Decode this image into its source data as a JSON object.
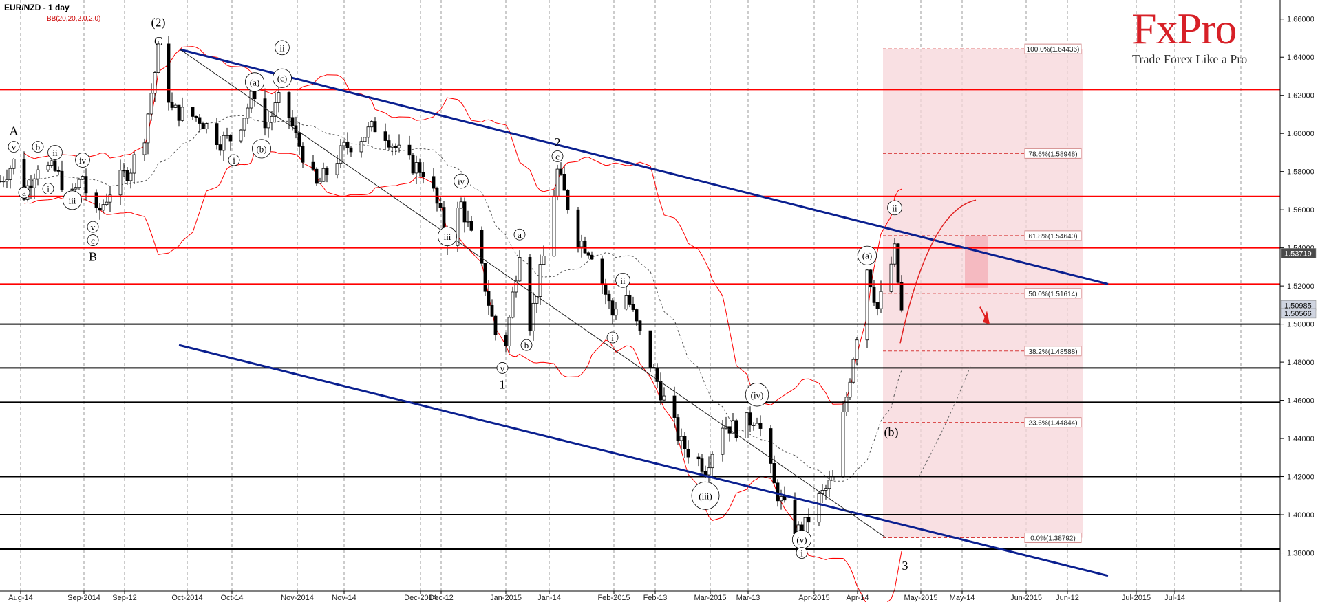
{
  "header": {
    "symbol_title": "EUR/NZD - 1 day",
    "indicator_label": "BB(20,20,2.0,2.0)"
  },
  "logo": {
    "name": "FxPro",
    "tagline": "Trade Forex Like a Pro"
  },
  "colors": {
    "bull": "#ffffff",
    "bear": "#000000",
    "bollinger": "#ff0000",
    "channel": "#0a1f8f",
    "resistance": "#ff0000",
    "support": "#000000",
    "fib_zone": "#f7d5d9",
    "fib_line": "#d73c3c"
  },
  "chart_data": {
    "type": "candlestick",
    "title": "EUR/NZD - 1 day",
    "ylim": [
      1.36,
      1.67
    ],
    "y_ticks": [
      "1.38000",
      "1.40000",
      "1.42000",
      "1.44000",
      "1.46000",
      "1.48000",
      "1.50000",
      "1.52000",
      "1.54000",
      "1.56000",
      "1.58000",
      "1.60000",
      "1.62000",
      "1.64000",
      "1.66000"
    ],
    "x_ticks": [
      "Aug-14",
      "Sep-2014",
      "Sep-12",
      "Oct-2014",
      "Oct-14",
      "Nov-2014",
      "Nov-14",
      "Dec-2014",
      "Dec-12",
      "Jan-2015",
      "Jan-14",
      "Feb-2015",
      "Feb-13",
      "Mar-2015",
      "Mar-13",
      "Apr-2015",
      "Apr-14",
      "May-2015",
      "May-14",
      "Jun-2015",
      "Jun-12",
      "Jul-2015",
      "Jul-14"
    ],
    "price_tags": [
      {
        "label": "1.53719",
        "price": 1.53719,
        "style": "dark"
      },
      {
        "label": "1.50985",
        "price": 1.50985,
        "style": "light"
      },
      {
        "label": "1.50566",
        "price": 1.50566,
        "style": "light"
      }
    ],
    "resistance_levels": [
      1.623,
      1.567,
      1.54,
      1.521
    ],
    "support_levels": [
      1.5,
      1.477,
      1.459,
      1.42,
      1.4,
      1.382
    ],
    "fibonacci": [
      {
        "label": "100.0%(1.64436)",
        "price": 1.64436
      },
      {
        "label": "78.6%(1.58948)",
        "price": 1.58948
      },
      {
        "label": "61.8%(1.54640)",
        "price": 1.5464
      },
      {
        "label": "50.0%(1.51614)",
        "price": 1.51614
      },
      {
        "label": "38.2%(1.48588)",
        "price": 1.48588
      },
      {
        "label": "23.6%(1.44844)",
        "price": 1.44844
      },
      {
        "label": "0.0%(1.38792)",
        "price": 1.38792
      }
    ],
    "wave_labels": [
      {
        "text": "(2)",
        "day": 46,
        "price": 1.658
      },
      {
        "text": "C",
        "day": 46,
        "price": 1.648
      },
      {
        "text": "A",
        "day": 4,
        "price": 1.601
      },
      {
        "text": "v",
        "day": 4,
        "price": 1.593,
        "circled": true
      },
      {
        "text": "a",
        "day": 7,
        "price": 1.569,
        "circled": true
      },
      {
        "text": "b",
        "day": 11,
        "price": 1.593,
        "circled": true
      },
      {
        "text": "ii",
        "day": 16,
        "price": 1.59,
        "circled": true
      },
      {
        "text": "i",
        "day": 14,
        "price": 1.571,
        "circled": true
      },
      {
        "text": "iv",
        "day": 24,
        "price": 1.586,
        "circled": true
      },
      {
        "text": "iii",
        "day": 21,
        "price": 1.565,
        "circled": true
      },
      {
        "text": "v",
        "day": 27,
        "price": 1.551,
        "circled": true
      },
      {
        "text": "c",
        "day": 27,
        "price": 1.544,
        "circled": true
      },
      {
        "text": "B",
        "day": 27,
        "price": 1.535
      },
      {
        "text": "(a)",
        "day": 74,
        "price": 1.627,
        "circled": true
      },
      {
        "text": "ii",
        "day": 82,
        "price": 1.645,
        "circled": true
      },
      {
        "text": "(c)",
        "day": 82,
        "price": 1.629,
        "circled": true
      },
      {
        "text": "(b)",
        "day": 76,
        "price": 1.592,
        "circled": true
      },
      {
        "text": "i",
        "day": 68,
        "price": 1.586,
        "circled": true
      },
      {
        "text": "2",
        "day": 162,
        "price": 1.595
      },
      {
        "text": "c",
        "day": 162,
        "price": 1.588,
        "circled": true
      },
      {
        "text": "iv",
        "day": 134,
        "price": 1.575,
        "circled": true
      },
      {
        "text": "iii",
        "day": 130,
        "price": 1.546,
        "circled": true
      },
      {
        "text": "a",
        "day": 151,
        "price": 1.547,
        "circled": true
      },
      {
        "text": "b",
        "day": 153,
        "price": 1.489,
        "circled": true
      },
      {
        "text": "v",
        "day": 146,
        "price": 1.477,
        "circled": true
      },
      {
        "text": "1",
        "day": 146,
        "price": 1.468
      },
      {
        "text": "ii",
        "day": 181,
        "price": 1.523,
        "circled": true
      },
      {
        "text": "i",
        "day": 178,
        "price": 1.493,
        "circled": true
      },
      {
        "text": "(iv)",
        "day": 220,
        "price": 1.463,
        "circled": true
      },
      {
        "text": "(iii)",
        "day": 205,
        "price": 1.41,
        "circled": true
      },
      {
        "text": "(v)",
        "day": 233,
        "price": 1.387,
        "circled": true
      },
      {
        "text": "i",
        "day": 233,
        "price": 1.38,
        "circled": true
      },
      {
        "text": "(a)",
        "day": 252,
        "price": 1.536,
        "circled": true
      },
      {
        "text": "ii",
        "day": 260,
        "price": 1.561,
        "circled": true
      },
      {
        "text": "(b)",
        "day": 259,
        "price": 1.443
      },
      {
        "text": "3",
        "day": 263,
        "price": 1.373
      }
    ]
  }
}
